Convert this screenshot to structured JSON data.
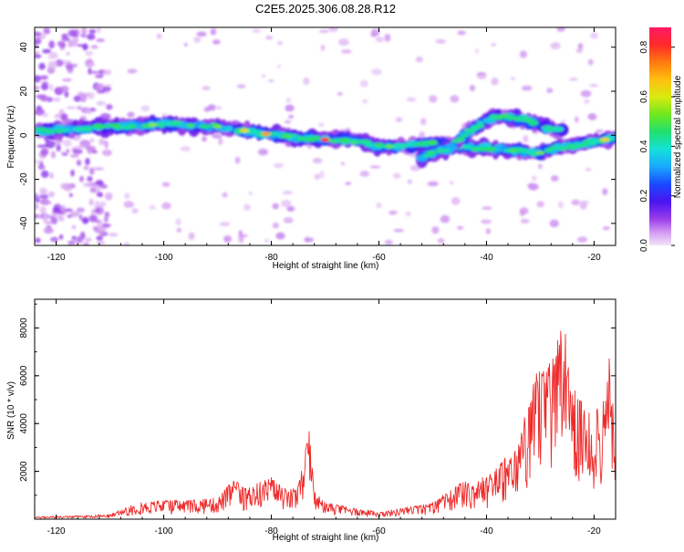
{
  "title": "C2E5.2025.306.08.28.R12",
  "chart_data": [
    {
      "type": "heatmap",
      "title": "C2E5.2025.306.08.28.R12",
      "xlabel": "Height of straight line (km)",
      "ylabel": "Frequency (Hz)",
      "xlim": [
        -124,
        -16
      ],
      "ylim": [
        -50,
        49
      ],
      "xticks": [
        -120,
        -100,
        -80,
        -60,
        -40,
        -20
      ],
      "yticks": [
        -40,
        -20,
        0,
        20,
        40
      ],
      "colorbar": {
        "label": "Normalized spectral amplitude",
        "range": [
          0,
          0.88
        ],
        "ticks": [
          0.0,
          0.2,
          0.4,
          0.6,
          0.8
        ]
      },
      "ridges": [
        {
          "name": "main",
          "points": [
            [
              -123,
              2
            ],
            [
              -110,
              4
            ],
            [
              -100,
              5
            ],
            [
              -90,
              4
            ],
            [
              -82,
              1
            ],
            [
              -75,
              -1
            ],
            [
              -70,
              -2
            ],
            [
              -65,
              -2
            ],
            [
              -60,
              -5
            ],
            [
              -55,
              -5
            ],
            [
              -50,
              -3
            ],
            [
              -45,
              -5
            ],
            [
              -40,
              -6
            ],
            [
              -35,
              -7
            ],
            [
              -30,
              -8
            ],
            [
              -25,
              -5
            ],
            [
              -20,
              -3
            ],
            [
              -16,
              -1
            ]
          ]
        },
        {
          "name": "upper",
          "points": [
            [
              -52,
              -10
            ],
            [
              -47,
              -6
            ],
            [
              -42,
              4
            ],
            [
              -38,
              9
            ],
            [
              -33,
              7
            ],
            [
              -28,
              3
            ],
            [
              -22,
              0
            ],
            [
              -16,
              -1
            ]
          ]
        }
      ]
    },
    {
      "type": "line",
      "xlabel": "Height of straight line (km)",
      "ylabel": "SNR (10 * v/v)",
      "xlim": [
        -124,
        -16
      ],
      "ylim": [
        0,
        9200
      ],
      "xticks": [
        -120,
        -100,
        -80,
        -60,
        -40,
        -20
      ],
      "yticks": [
        2000,
        4000,
        6000,
        8000
      ],
      "color": "#ee2a2a",
      "envelope": {
        "x": [
          -124,
          -115,
          -110,
          -105,
          -100,
          -95,
          -90,
          -87,
          -85,
          -80,
          -77,
          -75,
          -73,
          -72,
          -70,
          -65,
          -60,
          -55,
          -50,
          -45,
          -40,
          -37,
          -35,
          -33,
          -31,
          -29,
          -27,
          -26,
          -24,
          -22,
          -20,
          -18,
          -17,
          -16
        ],
        "y": [
          100,
          150,
          200,
          700,
          800,
          800,
          900,
          1700,
          1300,
          1800,
          1200,
          1400,
          3800,
          1200,
          700,
          500,
          300,
          500,
          700,
          1500,
          1800,
          2500,
          2800,
          4200,
          6000,
          6800,
          7000,
          9000,
          5600,
          4800,
          4500,
          5000,
          7700,
          2000
        ]
      }
    }
  ]
}
